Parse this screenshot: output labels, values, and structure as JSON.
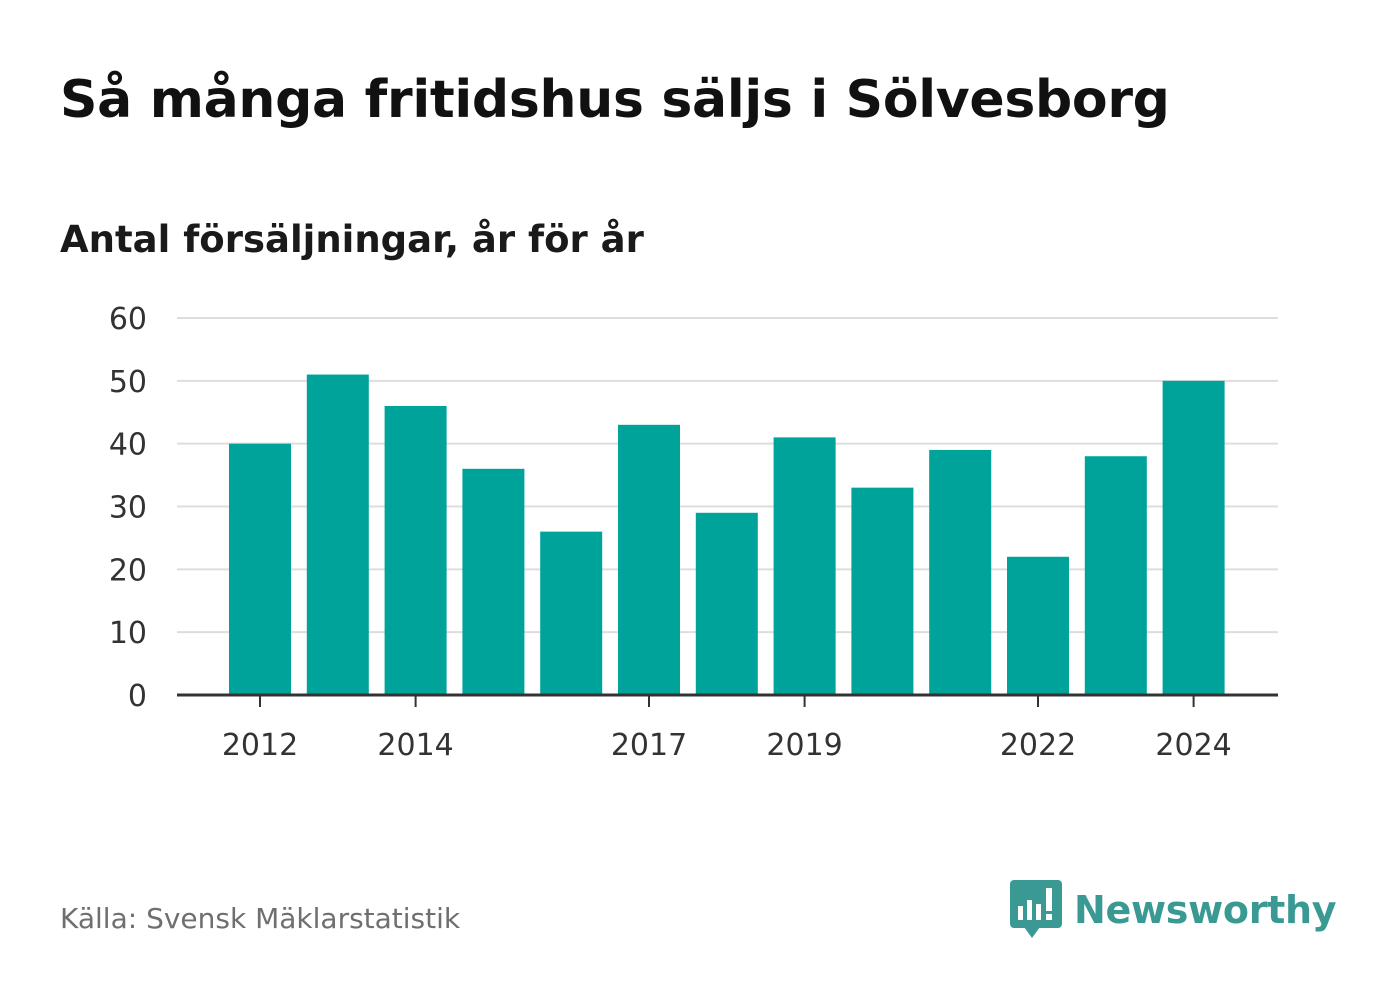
{
  "title": "Så många fritidshus säljs i Sölvesborg",
  "subtitle": "Antal försäljningar, år för år",
  "source": "Källa: Svensk Mäklarstatistik",
  "brand": {
    "name": "Newsworthy",
    "color": "#3a9a93",
    "icon": "newsworthy-logo-icon"
  },
  "chart_data": {
    "type": "bar",
    "bar_color": "#00a39a",
    "categories": [
      "2012",
      "2013",
      "2014",
      "2015",
      "2016",
      "2017",
      "2018",
      "2019",
      "2020",
      "2021",
      "2022",
      "2023",
      "2024"
    ],
    "values": [
      40,
      51,
      46,
      36,
      26,
      43,
      29,
      41,
      33,
      39,
      22,
      38,
      50
    ],
    "xtick_labels": [
      "2012",
      "2014",
      "2017",
      "2019",
      "2022",
      "2024"
    ],
    "yticks": [
      0,
      10,
      20,
      30,
      40,
      50,
      60
    ],
    "ylim": [
      0,
      60
    ],
    "grid": true
  }
}
